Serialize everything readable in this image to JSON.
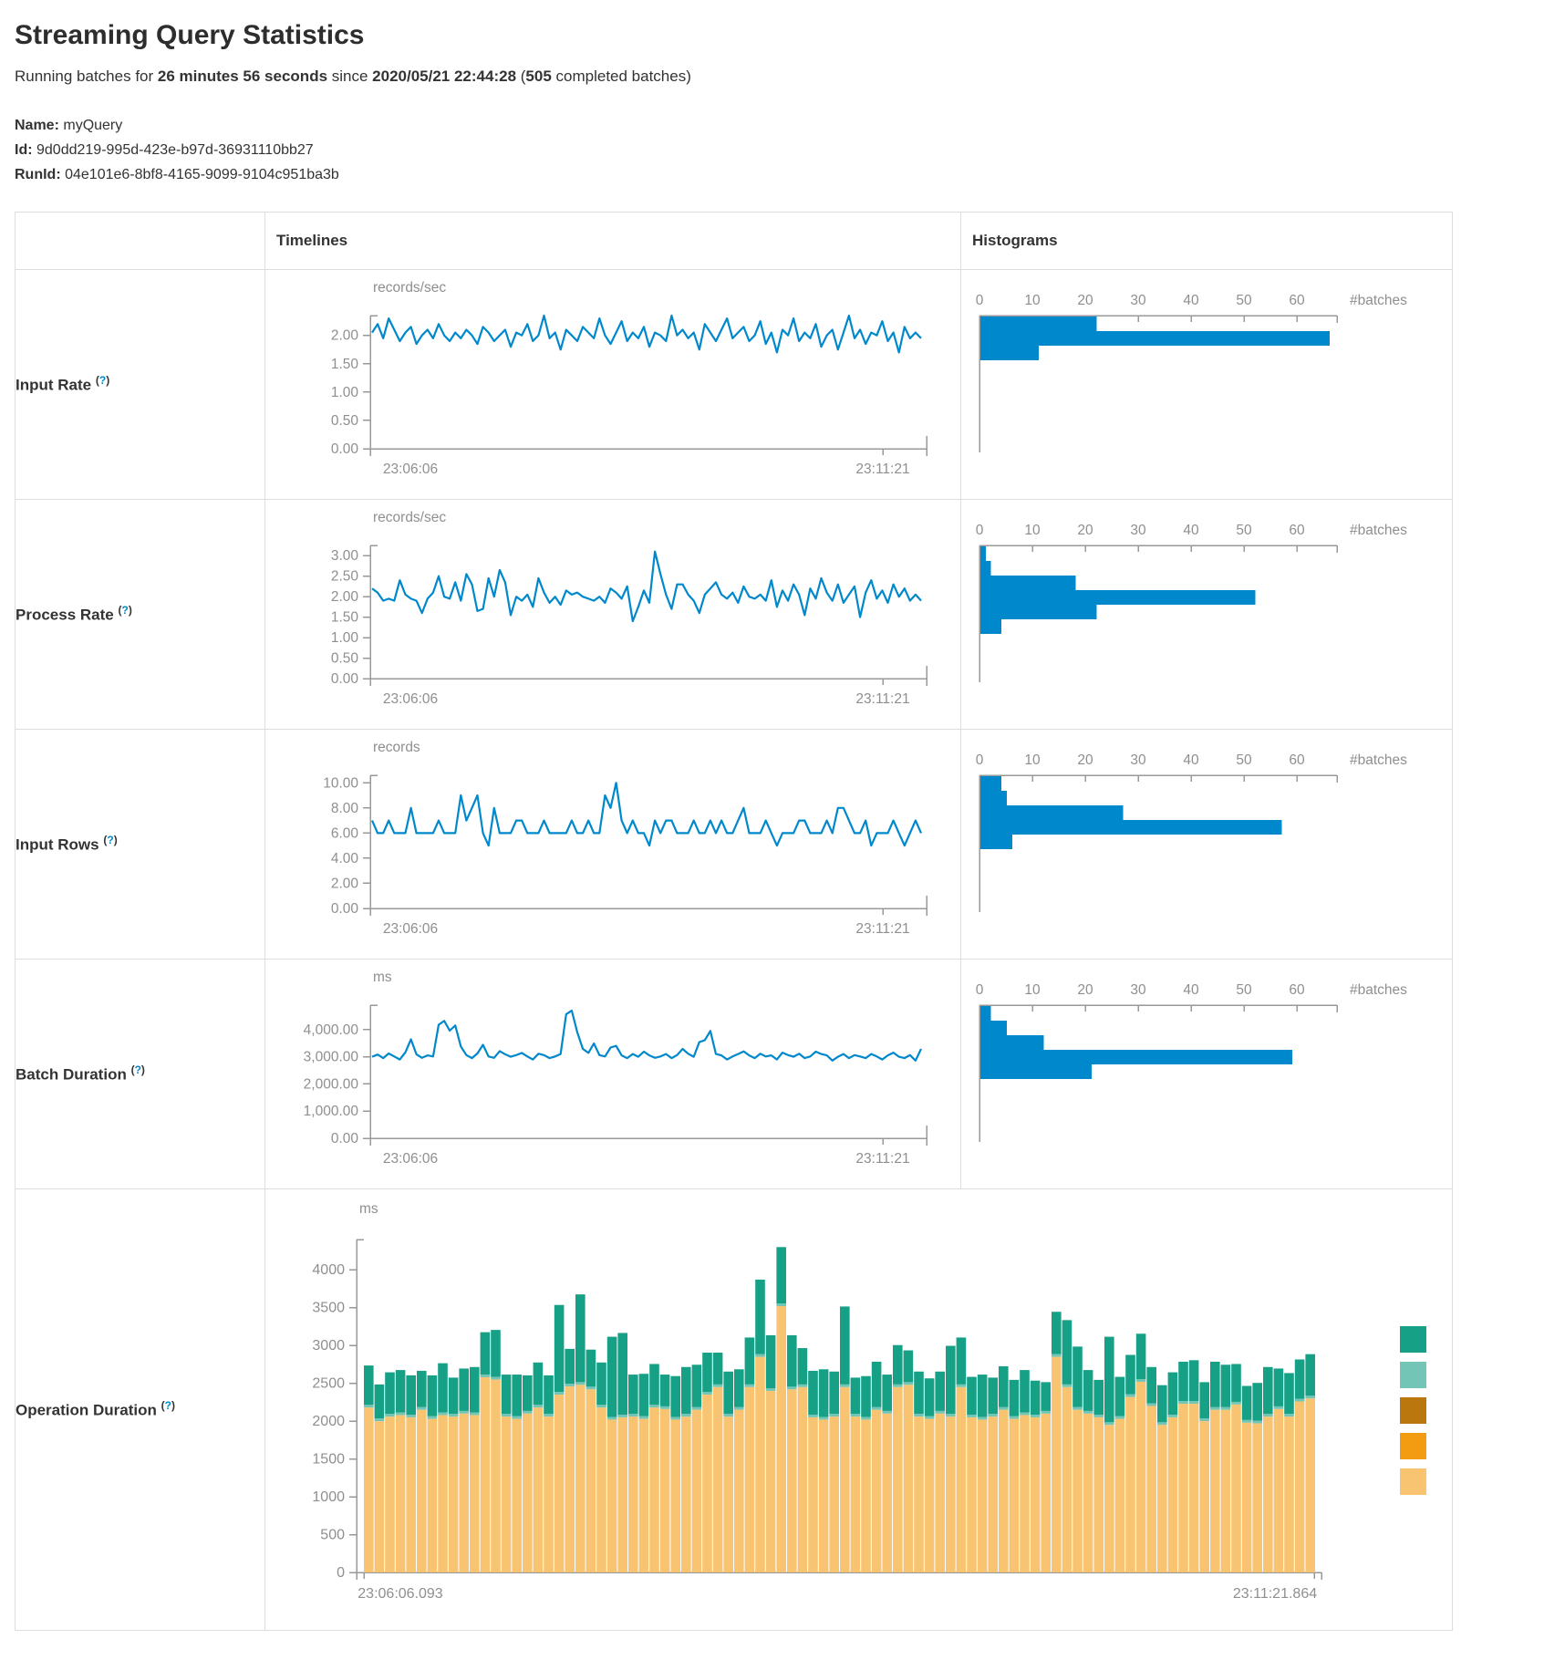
{
  "header": {
    "title": "Streaming Query Statistics",
    "running_prefix": "Running batches for ",
    "duration": "26 minutes 56 seconds",
    "since_text": " since ",
    "start_time": "2020/05/21 22:44:28",
    "batches_open": " (",
    "completed_batches": "505",
    "batches_suffix": " completed batches)",
    "name_label": "Name:",
    "name_value": "myQuery",
    "id_label": "Id:",
    "id_value": "9d0dd219-995d-423e-b97d-36931110bb27",
    "runid_label": "RunId:",
    "runid_value": "04e101e6-8bf8-4165-9099-9104c951ba3b"
  },
  "help": {
    "open": "(",
    "q": "?",
    "close": ")"
  },
  "table_headers": {
    "timelines": "Timelines",
    "histograms": "Histograms"
  },
  "colors": {
    "line": "#0088CC",
    "hist_bar": "#0088CC",
    "axis": "#999999",
    "axis_text": "#8f8f8f",
    "label_text": "#333333"
  },
  "shared_axis": {
    "x_start": "23:06:06",
    "x_end": "23:11:21",
    "hist_ticks": [
      "0",
      "10",
      "20",
      "30",
      "40",
      "50",
      "60"
    ],
    "hist_unit": "#batches"
  },
  "chart_data": {
    "rows": [
      {
        "label": "Input Rate",
        "timeline": {
          "type": "line",
          "unit": "records/sec",
          "ylim": [
            0,
            2.35
          ],
          "yticks": [
            {
              "v": 0,
              "t": "0.00"
            },
            {
              "v": 0.5,
              "t": "0.50"
            },
            {
              "v": 1,
              "t": "1.00"
            },
            {
              "v": 1.5,
              "t": "1.50"
            },
            {
              "v": 2,
              "t": "2.00"
            }
          ],
          "x_start": "23:06:06",
          "x_end": "23:11:21",
          "values": [
            2.05,
            2.2,
            1.95,
            2.3,
            2.1,
            1.9,
            2.05,
            2.15,
            1.85,
            2.0,
            2.1,
            1.95,
            2.2,
            2.0,
            1.9,
            2.05,
            1.95,
            2.1,
            2.0,
            1.85,
            2.15,
            2.05,
            1.9,
            2.0,
            2.1,
            1.8,
            2.05,
            2.0,
            2.2,
            1.9,
            2.0,
            2.35,
            1.95,
            2.05,
            1.75,
            2.1,
            2.0,
            1.9,
            2.15,
            2.05,
            1.95,
            2.3,
            2.0,
            1.85,
            2.05,
            2.25,
            1.9,
            2.05,
            1.95,
            2.15,
            1.8,
            2.05,
            2.0,
            1.9,
            2.35,
            2.0,
            2.1,
            1.95,
            2.05,
            1.75,
            2.2,
            2.05,
            1.9,
            2.1,
            2.3,
            1.95,
            2.05,
            2.15,
            1.9,
            2.0,
            2.25,
            1.85,
            2.05,
            1.7,
            2.1,
            2.0,
            2.3,
            1.9,
            2.05,
            1.95,
            2.2,
            1.8,
            2.0,
            2.1,
            1.75,
            2.05,
            2.35,
            1.95,
            2.1,
            1.85,
            2.05,
            2.0,
            2.25,
            1.9,
            2.05,
            1.7,
            2.15,
            1.95,
            2.05,
            1.95
          ]
        },
        "histogram": {
          "type": "bar",
          "xlabel": "#batches",
          "bins": [
            22,
            66,
            11
          ]
        }
      },
      {
        "label": "Process Rate",
        "timeline": {
          "type": "line",
          "unit": "records/sec",
          "ylim": [
            0,
            3.25
          ],
          "yticks": [
            {
              "v": 0,
              "t": "0.00"
            },
            {
              "v": 0.5,
              "t": "0.50"
            },
            {
              "v": 1,
              "t": "1.00"
            },
            {
              "v": 1.5,
              "t": "1.50"
            },
            {
              "v": 2,
              "t": "2.00"
            },
            {
              "v": 2.5,
              "t": "2.50"
            },
            {
              "v": 3,
              "t": "3.00"
            }
          ],
          "x_start": "23:06:06",
          "x_end": "23:11:21",
          "values": [
            2.2,
            2.1,
            1.9,
            1.95,
            1.9,
            2.4,
            2.05,
            1.95,
            1.9,
            1.6,
            1.95,
            2.1,
            2.5,
            2.0,
            1.95,
            2.35,
            1.9,
            2.55,
            2.3,
            1.65,
            1.7,
            2.45,
            2.0,
            2.65,
            2.35,
            1.55,
            2.0,
            1.9,
            2.05,
            1.75,
            2.45,
            2.1,
            1.85,
            2.0,
            1.8,
            2.15,
            2.05,
            2.1,
            2.0,
            1.95,
            1.9,
            2.0,
            1.85,
            2.2,
            2.1,
            1.95,
            2.25,
            1.4,
            1.75,
            2.15,
            1.85,
            3.1,
            2.55,
            2.05,
            1.7,
            2.3,
            2.3,
            2.05,
            1.9,
            1.6,
            2.05,
            2.2,
            2.35,
            2.05,
            1.95,
            2.1,
            1.85,
            2.25,
            2.0,
            1.95,
            2.05,
            1.9,
            2.4,
            1.75,
            2.15,
            1.9,
            2.3,
            2.05,
            1.55,
            2.2,
            1.95,
            2.45,
            2.1,
            1.9,
            2.3,
            1.85,
            2.05,
            2.25,
            1.5,
            2.1,
            2.4,
            1.95,
            2.15,
            1.85,
            2.3,
            2.0,
            2.2,
            1.9,
            2.05,
            1.9
          ]
        },
        "histogram": {
          "type": "bar",
          "xlabel": "#batches",
          "bins": [
            1,
            2,
            18,
            52,
            22,
            4
          ]
        }
      },
      {
        "label": "Input Rows",
        "timeline": {
          "type": "line",
          "unit": "records",
          "ylim": [
            0,
            10.6
          ],
          "yticks": [
            {
              "v": 0,
              "t": "0.00"
            },
            {
              "v": 2,
              "t": "2.00"
            },
            {
              "v": 4,
              "t": "4.00"
            },
            {
              "v": 6,
              "t": "6.00"
            },
            {
              "v": 8,
              "t": "8.00"
            },
            {
              "v": 10,
              "t": "10.00"
            }
          ],
          "x_start": "23:06:06",
          "x_end": "23:11:21",
          "values": [
            7,
            6,
            6,
            7,
            6,
            6,
            6,
            8,
            6,
            6,
            6,
            6,
            7,
            6,
            6,
            6,
            9,
            7,
            8,
            9,
            6,
            5,
            8,
            6,
            6,
            6,
            7,
            7,
            6,
            6,
            6,
            7,
            6,
            6,
            6,
            6,
            7,
            6,
            6,
            7,
            6,
            6,
            9,
            8,
            10,
            7,
            6,
            7,
            6,
            6,
            5,
            7,
            6,
            7,
            7,
            6,
            6,
            6,
            7,
            6,
            6,
            7,
            6,
            7,
            6,
            6,
            7,
            8,
            6,
            6,
            6,
            7,
            6,
            5,
            6,
            6,
            6,
            7,
            7,
            6,
            6,
            6,
            7,
            6,
            8,
            8,
            7,
            6,
            6,
            7,
            5,
            6,
            6,
            6,
            7,
            6,
            5,
            6,
            7,
            6
          ]
        },
        "histogram": {
          "type": "bar",
          "xlabel": "#batches",
          "bins": [
            4,
            5,
            27,
            57,
            6
          ]
        }
      },
      {
        "label": "Batch Duration",
        "timeline": {
          "type": "line",
          "unit": "ms",
          "ylim": [
            0,
            4900
          ],
          "yticks": [
            {
              "v": 0,
              "t": "0.00"
            },
            {
              "v": 1000,
              "t": "1,000.00"
            },
            {
              "v": 2000,
              "t": "2,000.00"
            },
            {
              "v": 3000,
              "t": "3,000.00"
            },
            {
              "v": 4000,
              "t": "4,000.00"
            }
          ],
          "x_start": "23:06:06",
          "x_end": "23:11:21",
          "values": [
            3000,
            3080,
            2950,
            3120,
            3010,
            2900,
            3160,
            3640,
            3090,
            2960,
            3050,
            3010,
            4180,
            4320,
            3960,
            4150,
            3380,
            3060,
            2950,
            3120,
            3440,
            3010,
            2960,
            3210,
            3090,
            3000,
            3060,
            3140,
            3010,
            2900,
            3110,
            3060,
            2950,
            3010,
            3100,
            4560,
            4700,
            3900,
            3290,
            3140,
            3490,
            3060,
            3010,
            3340,
            3400,
            3050,
            2950,
            3100,
            3000,
            3190,
            3050,
            2960,
            3010,
            3100,
            2950,
            3060,
            3290,
            3110,
            3000,
            3540,
            3610,
            3950,
            3100,
            3050,
            2900,
            3010,
            3100,
            3200,
            3050,
            2950,
            3110,
            3010,
            3050,
            2900,
            3150,
            3060,
            3000,
            3110,
            2950,
            3010,
            3190,
            3100,
            3050,
            2860,
            3000,
            3100,
            2950,
            3060,
            3010,
            2950,
            3100,
            3010,
            2900,
            3050,
            3150,
            3000,
            2950,
            3060,
            2860,
            3290
          ]
        },
        "histogram": {
          "type": "bar",
          "xlabel": "#batches",
          "bins": [
            2,
            5,
            12,
            59,
            21
          ]
        }
      }
    ],
    "operation": {
      "label": "Operation Duration",
      "type": "stacked-bar",
      "unit": "ms",
      "ylim": [
        0,
        4400
      ],
      "yticks": [
        {
          "v": 0,
          "t": "0"
        },
        {
          "v": 500,
          "t": "500"
        },
        {
          "v": 1000,
          "t": "1000"
        },
        {
          "v": 1500,
          "t": "1500"
        },
        {
          "v": 2000,
          "t": "2000"
        },
        {
          "v": 2500,
          "t": "2500"
        },
        {
          "v": 3000,
          "t": "3000"
        },
        {
          "v": 3500,
          "t": "3500"
        },
        {
          "v": 4000,
          "t": "4000"
        }
      ],
      "x_start": "23:06:06.093",
      "x_end": "23:11:21.864",
      "legend_colors": [
        "#16A085",
        "#73C6B6",
        "#B9770E",
        "#F39C12",
        "#F8C471"
      ],
      "segment_colors": {
        "bottom": "#F8C471",
        "middle": "#73C6B6",
        "top": "#16A085"
      },
      "middle_value": 35,
      "bars_bottom_top": [
        [
          2180,
          520
        ],
        [
          2000,
          450
        ],
        [
          2060,
          550
        ],
        [
          2080,
          560
        ],
        [
          2050,
          520
        ],
        [
          2150,
          480
        ],
        [
          2030,
          540
        ],
        [
          2080,
          650
        ],
        [
          2060,
          480
        ],
        [
          2100,
          560
        ],
        [
          2080,
          600
        ],
        [
          2580,
          560
        ],
        [
          2550,
          620
        ],
        [
          2060,
          520
        ],
        [
          2030,
          550
        ],
        [
          2100,
          470
        ],
        [
          2180,
          560
        ],
        [
          2060,
          510
        ],
        [
          2350,
          1150
        ],
        [
          2460,
          460
        ],
        [
          2480,
          1160
        ],
        [
          2420,
          490
        ],
        [
          2180,
          560
        ],
        [
          2020,
          1060
        ],
        [
          2050,
          1080
        ],
        [
          2060,
          520
        ],
        [
          2030,
          560
        ],
        [
          2180,
          540
        ],
        [
          2160,
          420
        ],
        [
          2020,
          540
        ],
        [
          2060,
          620
        ],
        [
          2150,
          560
        ],
        [
          2350,
          520
        ],
        [
          2450,
          420
        ],
        [
          2060,
          560
        ],
        [
          2150,
          500
        ],
        [
          2450,
          620
        ],
        [
          2850,
          985
        ],
        [
          2400,
          700
        ],
        [
          3520,
          745
        ],
        [
          2420,
          680
        ],
        [
          2450,
          480
        ],
        [
          2050,
          580
        ],
        [
          2020,
          630
        ],
        [
          2060,
          560
        ],
        [
          2450,
          1030
        ],
        [
          2060,
          480
        ],
        [
          2020,
          540
        ],
        [
          2150,
          600
        ],
        [
          2100,
          480
        ],
        [
          2450,
          520
        ],
        [
          2480,
          420
        ],
        [
          2060,
          560
        ],
        [
          2030,
          500
        ],
        [
          2100,
          520
        ],
        [
          2060,
          900
        ],
        [
          2450,
          620
        ],
        [
          2050,
          500
        ],
        [
          2020,
          560
        ],
        [
          2060,
          480
        ],
        [
          2150,
          540
        ],
        [
          2030,
          480
        ],
        [
          2080,
          560
        ],
        [
          2050,
          450
        ],
        [
          2100,
          380
        ],
        [
          2850,
          560
        ],
        [
          2450,
          850
        ],
        [
          2150,
          800
        ],
        [
          2100,
          540
        ],
        [
          2050,
          460
        ],
        [
          1950,
          1130
        ],
        [
          2030,
          520
        ],
        [
          2320,
          520
        ],
        [
          2520,
          600
        ],
        [
          2200,
          480
        ],
        [
          1950,
          490
        ],
        [
          2050,
          560
        ],
        [
          2230,
          520
        ],
        [
          2230,
          540
        ],
        [
          2000,
          480
        ],
        [
          2150,
          600
        ],
        [
          2150,
          560
        ],
        [
          2220,
          500
        ],
        [
          1980,
          450
        ],
        [
          1970,
          500
        ],
        [
          2060,
          620
        ],
        [
          2160,
          500
        ],
        [
          2060,
          540
        ],
        [
          2260,
          520
        ],
        [
          2300,
          550
        ]
      ]
    }
  }
}
